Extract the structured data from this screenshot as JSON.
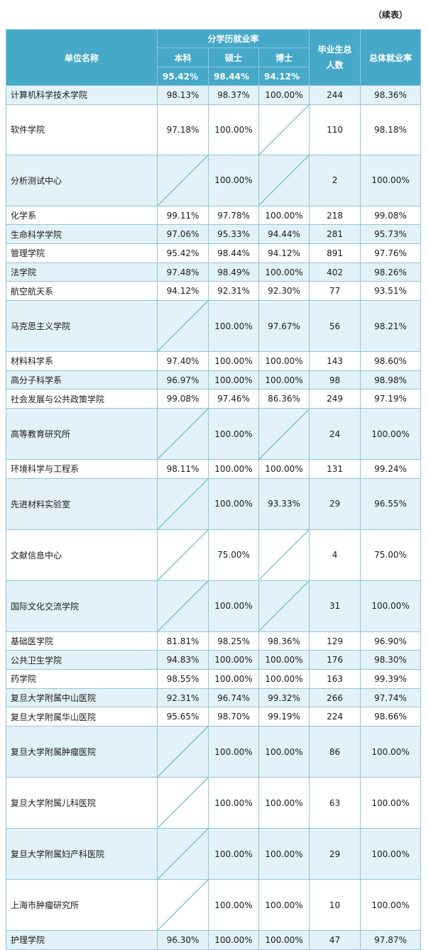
{
  "continued_label": "（续表）",
  "header": {
    "unit_name": "单位名称",
    "degree_group": "分学历就业率",
    "bachelor": "本科",
    "master": "硕士",
    "doctor": "博士",
    "total_grads": "毕业生总人数",
    "overall_rate": "总体就业率",
    "bachelor_avg": "95.42%",
    "master_avg": "98.44%",
    "doctor_avg": "94.12%"
  },
  "rows": [
    {
      "name": "计算机科学技术学院",
      "bachelor": "98.13%",
      "master": "98.37%",
      "doctor": "100.00%",
      "total": "244",
      "overall": "98.36%"
    },
    {
      "name": "软件学院",
      "bachelor": "97.18%",
      "master": "100.00%",
      "doctor": null,
      "total": "110",
      "overall": "98.18%"
    },
    {
      "name": "分析测试中心",
      "bachelor": null,
      "master": "100.00%",
      "doctor": null,
      "total": "2",
      "overall": "100.00%"
    },
    {
      "name": "化学系",
      "bachelor": "99.11%",
      "master": "97.78%",
      "doctor": "100.00%",
      "total": "218",
      "overall": "99.08%"
    },
    {
      "name": "生命科学学院",
      "bachelor": "97.06%",
      "master": "95.33%",
      "doctor": "94.44%",
      "total": "281",
      "overall": "95.73%"
    },
    {
      "name": "管理学院",
      "bachelor": "95.42%",
      "master": "98.44%",
      "doctor": "94.12%",
      "total": "891",
      "overall": "97.76%"
    },
    {
      "name": "法学院",
      "bachelor": "97.48%",
      "master": "98.49%",
      "doctor": "100.00%",
      "total": "402",
      "overall": "98.26%"
    },
    {
      "name": "航空航天系",
      "bachelor": "94.12%",
      "master": "92.31%",
      "doctor": "92.30%",
      "total": "77",
      "overall": "93.51%"
    },
    {
      "name": "马克思主义学院",
      "bachelor": null,
      "master": "100.00%",
      "doctor": "97.67%",
      "total": "56",
      "overall": "98.21%"
    },
    {
      "name": "材料科学系",
      "bachelor": "97.40%",
      "master": "100.00%",
      "doctor": "100.00%",
      "total": "143",
      "overall": "98.60%"
    },
    {
      "name": "高分子科学系",
      "bachelor": "96.97%",
      "master": "100.00%",
      "doctor": "100.00%",
      "total": "98",
      "overall": "98.98%"
    },
    {
      "name": "社会发展与公共政策学院",
      "bachelor": "99.08%",
      "master": "97.46%",
      "doctor": "86.36%",
      "total": "249",
      "overall": "97.19%"
    },
    {
      "name": "高等教育研究所",
      "bachelor": null,
      "master": "100.00%",
      "doctor": null,
      "total": "24",
      "overall": "100.00%"
    },
    {
      "name": "环境科学与工程系",
      "bachelor": "98.11%",
      "master": "100.00%",
      "doctor": "100.00%",
      "total": "131",
      "overall": "99.24%"
    },
    {
      "name": "先进材料实验室",
      "bachelor": null,
      "master": "100.00%",
      "doctor": "93.33%",
      "total": "29",
      "overall": "96.55%"
    },
    {
      "name": "文献信息中心",
      "bachelor": null,
      "master": "75.00%",
      "doctor": null,
      "total": "4",
      "overall": "75.00%"
    },
    {
      "name": "国际文化交流学院",
      "bachelor": null,
      "master": "100.00%",
      "doctor": null,
      "total": "31",
      "overall": "100.00%"
    },
    {
      "name": "基础医学院",
      "bachelor": "81.81%",
      "master": "98.25%",
      "doctor": "98.36%",
      "total": "129",
      "overall": "96.90%"
    },
    {
      "name": "公共卫生学院",
      "bachelor": "94.83%",
      "master": "100.00%",
      "doctor": "100.00%",
      "total": "176",
      "overall": "98.30%"
    },
    {
      "name": "药学院",
      "bachelor": "98.55%",
      "master": "100.00%",
      "doctor": "100.00%",
      "total": "163",
      "overall": "99.39%"
    },
    {
      "name": "复旦大学附属中山医院",
      "bachelor": "92.31%",
      "master": "96.74%",
      "doctor": "99.32%",
      "total": "266",
      "overall": "97.74%"
    },
    {
      "name": "复旦大学附属华山医院",
      "bachelor": "95.65%",
      "master": "98.70%",
      "doctor": "99.19%",
      "total": "224",
      "overall": "98.66%"
    },
    {
      "name": "复旦大学附属肿瘤医院",
      "bachelor": null,
      "master": "100.00%",
      "doctor": "100.00%",
      "total": "86",
      "overall": "100.00%"
    },
    {
      "name": "复旦大学附属儿科医院",
      "bachelor": null,
      "master": "100.00%",
      "doctor": "100.00%",
      "total": "63",
      "overall": "100.00%"
    },
    {
      "name": "复旦大学附属妇产科医院",
      "bachelor": null,
      "master": "100.00%",
      "doctor": "100.00%",
      "total": "29",
      "overall": "100.00%"
    },
    {
      "name": "上海市肿瘤研究所",
      "bachelor": null,
      "master": "100.00%",
      "doctor": "100.00%",
      "total": "10",
      "overall": "100.00%"
    },
    {
      "name": "护理学院",
      "bachelor": "96.30%",
      "master": "100.00%",
      "doctor": "100.00%",
      "total": "47",
      "overall": "97.87%"
    }
  ]
}
